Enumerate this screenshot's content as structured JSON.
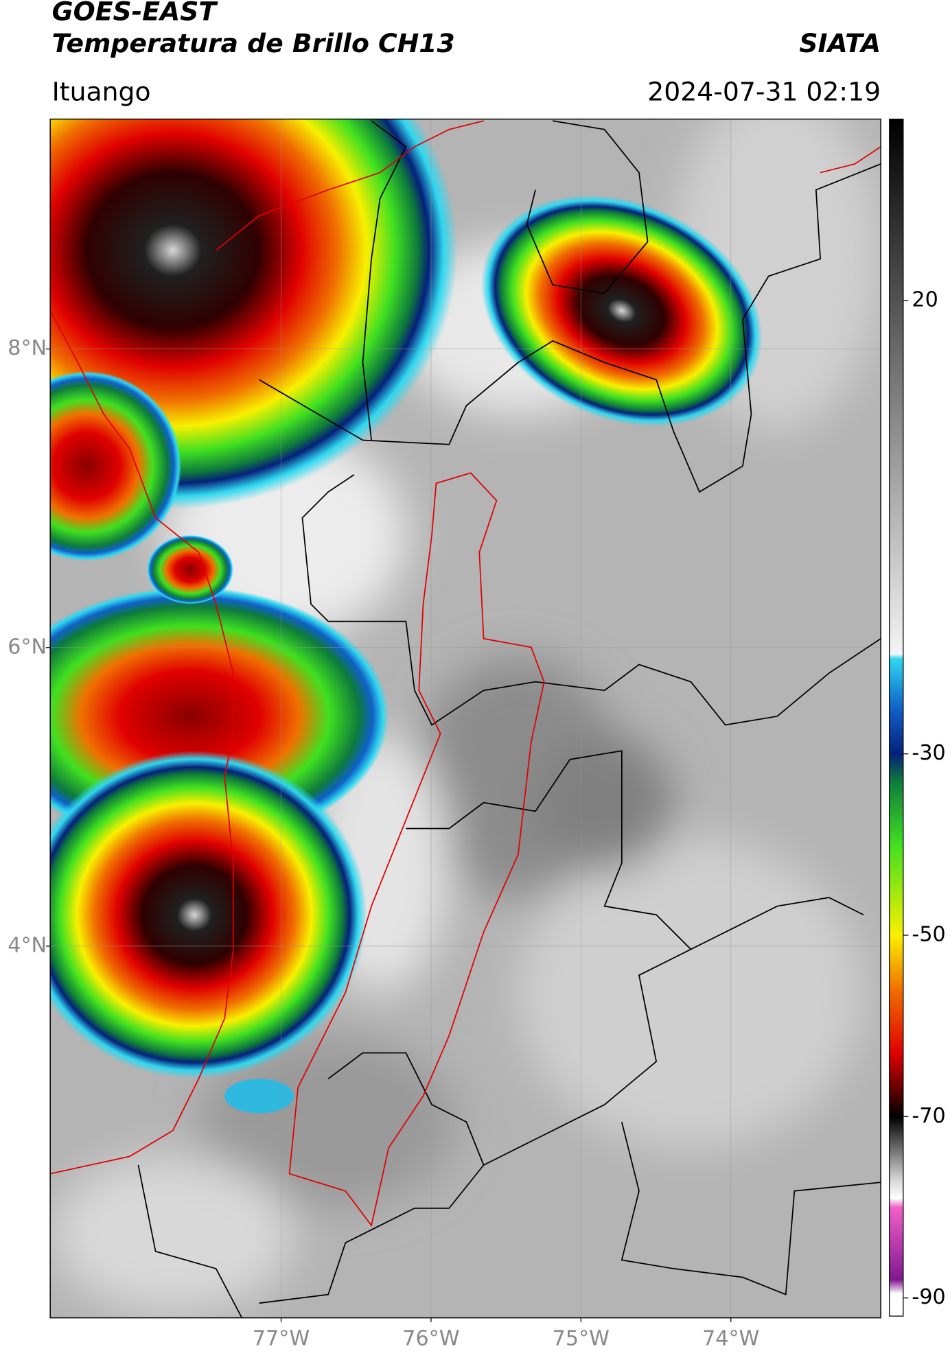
{
  "header": {
    "title": "GOES-EAST",
    "subtitle": "Temperatura de Brillo CH13",
    "source": "SIATA",
    "location": "Ituango",
    "datetime": "2024-07-31 02:19"
  },
  "map": {
    "lon_range": [
      -78.54,
      -73.0
    ],
    "lat_range": [
      1.51,
      9.54
    ],
    "grid": true,
    "lat_ticks": [
      {
        "value": 8,
        "label": "8°N"
      },
      {
        "value": 6,
        "label": "6°N"
      },
      {
        "value": 4,
        "label": "4°N"
      }
    ],
    "lon_ticks": [
      {
        "value": -77,
        "label": "77°W"
      },
      {
        "value": -76,
        "label": "76°W"
      },
      {
        "value": -75,
        "label": "75°W"
      },
      {
        "value": -74,
        "label": "74°W"
      }
    ]
  },
  "colorbar": {
    "range": [
      -92,
      40
    ],
    "ticks": [
      20,
      -30,
      -50,
      -70,
      -90
    ],
    "colormap": [
      {
        "value": 40,
        "color": "#000000"
      },
      {
        "value": -19,
        "color": "#f4f4f4"
      },
      {
        "value": -19.5,
        "color": "#2fd8f0"
      },
      {
        "value": -25,
        "color": "#1060c8"
      },
      {
        "value": -30,
        "color": "#06207a"
      },
      {
        "value": -33,
        "color": "#0e7a3c"
      },
      {
        "value": -40,
        "color": "#40e020"
      },
      {
        "value": -50,
        "color": "#f8f000"
      },
      {
        "value": -56,
        "color": "#f07000"
      },
      {
        "value": -63,
        "color": "#e00000"
      },
      {
        "value": -68,
        "color": "#400000"
      },
      {
        "value": -70,
        "color": "#000000"
      },
      {
        "value": -77,
        "color": "#d8d8d8"
      },
      {
        "value": -79,
        "color": "#ffffff"
      },
      {
        "value": -80,
        "color": "#f060c8"
      },
      {
        "value": -88,
        "color": "#801890"
      },
      {
        "value": -89.5,
        "color": "#ffffff"
      },
      {
        "value": -92,
        "color": "#ffffff"
      }
    ]
  }
}
